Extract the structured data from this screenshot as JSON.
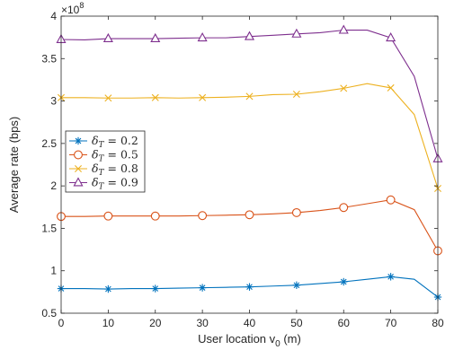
{
  "chart_data": {
    "type": "line",
    "xlabel": "User location v",
    "xlabel_sub": "0",
    "xlabel_unit": " (m)",
    "ylabel": "Average rate (bps)",
    "y_exponent_base": "×10",
    "y_exponent": "8",
    "xlim": [
      0,
      80
    ],
    "ylim": [
      0.5,
      4
    ],
    "x_ticks": [
      0,
      10,
      20,
      30,
      40,
      50,
      60,
      70,
      80
    ],
    "y_ticks": [
      "0.5",
      "1",
      "1.5",
      "2",
      "2.5",
      "3",
      "3.5",
      "4"
    ],
    "grid": false,
    "legend_position": "middle-left",
    "x": [
      0,
      5,
      10,
      15,
      20,
      25,
      30,
      35,
      40,
      45,
      50,
      55,
      60,
      65,
      70,
      75,
      80
    ],
    "series": [
      {
        "name": "δ_T = 0.2",
        "legend_var": "δ",
        "legend_sub": "T",
        "legend_value": " = 0.2",
        "color": "#0072bd",
        "marker": "asterisk",
        "values": [
          0.79,
          0.79,
          0.785,
          0.79,
          0.79,
          0.795,
          0.8,
          0.805,
          0.81,
          0.82,
          0.83,
          0.85,
          0.87,
          0.9,
          0.93,
          0.9,
          0.69
        ]
      },
      {
        "name": "δ_T = 0.5",
        "legend_var": "δ",
        "legend_sub": "T",
        "legend_value": " = 0.5",
        "color": "#d95319",
        "marker": "circle",
        "values": [
          1.64,
          1.64,
          1.645,
          1.645,
          1.645,
          1.645,
          1.65,
          1.655,
          1.66,
          1.67,
          1.685,
          1.71,
          1.745,
          1.79,
          1.835,
          1.72,
          1.235
        ]
      },
      {
        "name": "δ_T = 0.8",
        "legend_var": "δ",
        "legend_sub": "T",
        "legend_value": " = 0.8",
        "color": "#edb120",
        "marker": "x",
        "values": [
          3.04,
          3.04,
          3.035,
          3.035,
          3.04,
          3.035,
          3.04,
          3.045,
          3.055,
          3.075,
          3.08,
          3.11,
          3.15,
          3.205,
          3.155,
          2.84,
          1.97
        ]
      },
      {
        "name": "δ_T = 0.9",
        "legend_var": "δ",
        "legend_sub": "T",
        "legend_value": " = 0.9",
        "color": "#7e2f8e",
        "marker": "triangle",
        "values": [
          3.725,
          3.72,
          3.735,
          3.735,
          3.735,
          3.74,
          3.745,
          3.745,
          3.76,
          3.775,
          3.79,
          3.805,
          3.835,
          3.835,
          3.745,
          3.29,
          2.32
        ]
      }
    ]
  }
}
